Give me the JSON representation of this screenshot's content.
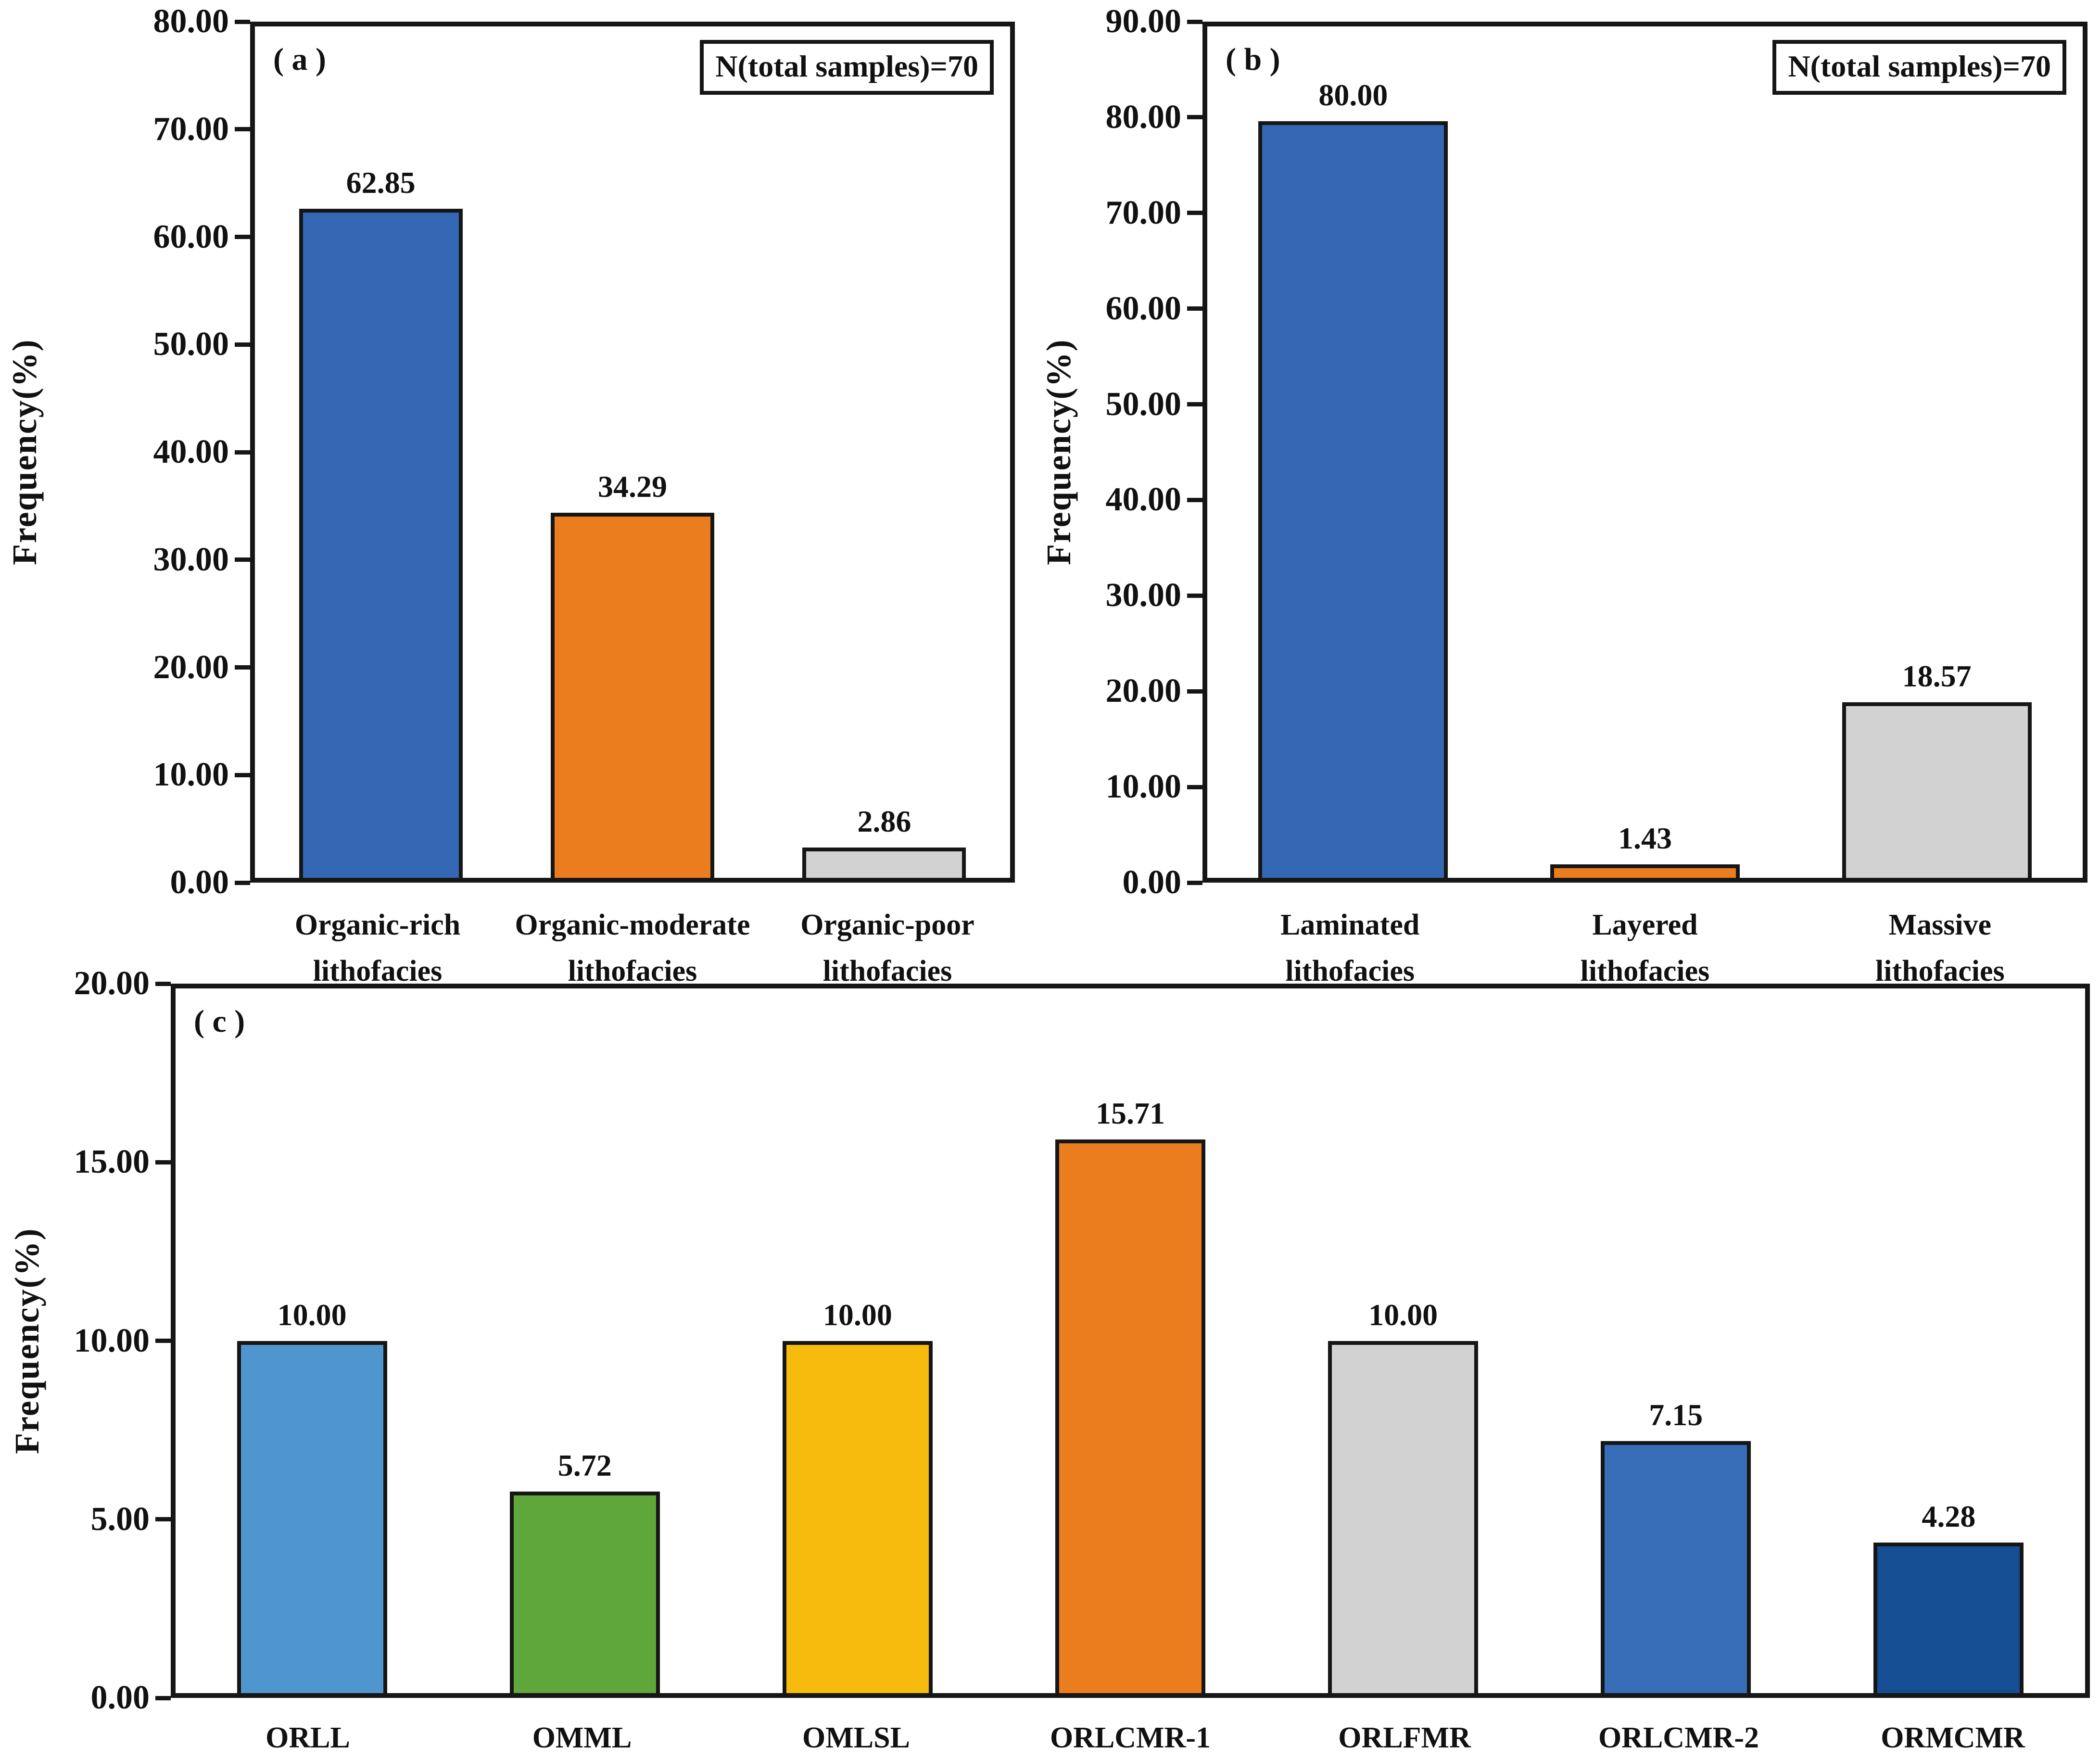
{
  "figure": {
    "background": "#ffffff",
    "text_color": "#111111",
    "axis_color": "#161616"
  },
  "chart_data": [
    {
      "type": "bar",
      "panel": "( a )",
      "note": "N(total samples)=70",
      "ylabel": "Frequency(%)",
      "ylim": [
        0,
        80
      ],
      "ytick_step": 10,
      "grid": false,
      "legend": null,
      "categories": [
        "Organic-rich lithofacies",
        "Organic-moderate lithofacies",
        "Organic-poor lithofacies"
      ],
      "category_lines": [
        [
          "Organic-rich",
          "lithofacies"
        ],
        [
          "Organic-moderate",
          "lithofacies"
        ],
        [
          "Organic-poor",
          "lithofacies"
        ]
      ],
      "values": [
        62.85,
        34.29,
        2.86
      ],
      "value_labels": [
        "62.85",
        "34.29",
        "2.86"
      ],
      "bar_colors": [
        "#3568B4",
        "#EC7D1F",
        "#D3D2D2"
      ]
    },
    {
      "type": "bar",
      "panel": "( b )",
      "note": "N(total samples)=70",
      "ylabel": "Frequency(%)",
      "ylim": [
        0,
        90
      ],
      "ytick_step": 10,
      "grid": false,
      "legend": null,
      "categories": [
        "Laminated lithofacies",
        "Layered lithofacies",
        "Massive lithofacies"
      ],
      "category_lines": [
        [
          "Laminated",
          "lithofacies"
        ],
        [
          "Layered",
          "lithofacies"
        ],
        [
          "Massive",
          "lithofacies"
        ]
      ],
      "values": [
        80.0,
        1.43,
        18.57
      ],
      "value_labels": [
        "80.00",
        "1.43",
        "18.57"
      ],
      "bar_colors": [
        "#3568B4",
        "#EC7D1F",
        "#D3D2D2"
      ]
    },
    {
      "type": "bar",
      "panel": "( c )",
      "ylabel": "Frequency(%)",
      "ylim": [
        0,
        20
      ],
      "ytick_step": 5,
      "grid": false,
      "legend": null,
      "categories": [
        "ORLL",
        "OMML",
        "OMLSL",
        "ORLCMR-1",
        "ORLFMR",
        "ORLCMR-2",
        "ORMCMR"
      ],
      "category_lines": [
        [
          "ORLL"
        ],
        [
          "OMML"
        ],
        [
          "OMLSL"
        ],
        [
          "ORLCMR-1"
        ],
        [
          "ORLFMR"
        ],
        [
          "ORLCMR-2"
        ],
        [
          "ORMCMR"
        ]
      ],
      "values": [
        10.0,
        5.72,
        10.0,
        15.71,
        10.0,
        7.15,
        4.28
      ],
      "value_labels": [
        "10.00",
        "5.72",
        "10.00",
        "15.71",
        "10.00",
        "7.15",
        "4.28"
      ],
      "bar_colors": [
        "#5096CE",
        "#5FA63B",
        "#F7BB0E",
        "#EC7D1F",
        "#D3D2D2",
        "#386DB8",
        "#164E94"
      ]
    }
  ]
}
